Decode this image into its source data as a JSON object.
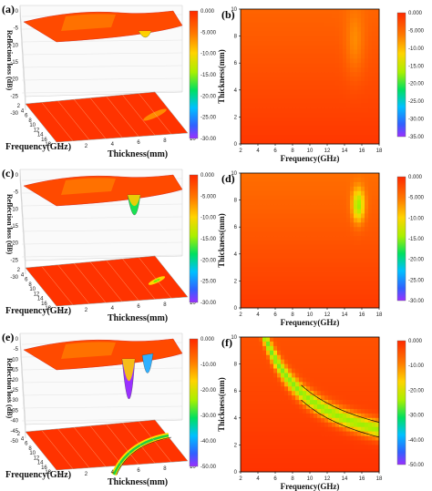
{
  "chart_data": [
    {
      "panel": "(a)",
      "type": "surface3d",
      "xlabel": "Frequency(GHz)",
      "ylabel": "Thickness(mm)",
      "zlabel": "Reflection loss (dB)",
      "x_ticks": [
        "2",
        "4",
        "6",
        "8",
        "10",
        "12",
        "14",
        "16",
        "18"
      ],
      "y_ticks": [
        "0",
        "2",
        "4",
        "6",
        "8",
        "10"
      ],
      "z_ticks": [
        "0",
        "-5",
        "-10",
        "-15",
        "-20",
        "-25",
        "-30"
      ],
      "colorbar_ticks": [
        "0.000",
        "-5.000",
        "-10.00",
        "-15.00",
        "-20.00",
        "-25.00",
        "-30.00"
      ],
      "min_rl": -10
    },
    {
      "panel": "(b)",
      "type": "heatmap",
      "xlabel": "Frequency(GHz)",
      "ylabel": "Thickness(mm)",
      "x_ticks": [
        "2",
        "4",
        "6",
        "8",
        "10",
        "12",
        "14",
        "16",
        "18"
      ],
      "y_ticks": [
        "0",
        "2",
        "4",
        "6",
        "8",
        "10"
      ],
      "colorbar_ticks": [
        "0.000",
        "-5.000",
        "-10.00",
        "-15.00",
        "-20.00",
        "-25.00",
        "-30.00",
        "-35.00"
      ],
      "min_rl": -10
    },
    {
      "panel": "(c)",
      "type": "surface3d",
      "xlabel": "Frequency(GHz)",
      "ylabel": "Thickness(mm)",
      "zlabel": "Reflection loss (dB)",
      "x_ticks": [
        "2",
        "4",
        "6",
        "8",
        "10",
        "12",
        "14",
        "16",
        "18"
      ],
      "y_ticks": [
        "0",
        "2",
        "4",
        "6",
        "8",
        "10"
      ],
      "z_ticks": [
        "0",
        "-5",
        "-10",
        "-15",
        "-20",
        "-25",
        "-30"
      ],
      "colorbar_ticks": [
        "0.000",
        "-5.000",
        "-10.00",
        "-15.00",
        "-20.00",
        "-25.00",
        "-30.00"
      ],
      "min_rl": -18
    },
    {
      "panel": "(d)",
      "type": "heatmap",
      "xlabel": "Frequency(GHz)",
      "ylabel": "Thickness(mm)",
      "x_ticks": [
        "2",
        "4",
        "6",
        "8",
        "10",
        "12",
        "14",
        "16",
        "18"
      ],
      "y_ticks": [
        "0",
        "2",
        "4",
        "6",
        "8",
        "10"
      ],
      "colorbar_ticks": [
        "0.000",
        "-5.000",
        "-10.00",
        "-15.00",
        "-20.00",
        "-25.00",
        "-30.00"
      ],
      "min_rl": -18
    },
    {
      "panel": "(e)",
      "type": "surface3d",
      "xlabel": "Frequency(GHz)",
      "ylabel": "Thickness(mm)",
      "zlabel": "Reflection loss (dB)",
      "x_ticks": [
        "2",
        "4",
        "6",
        "8",
        "10",
        "12",
        "14",
        "16",
        "18"
      ],
      "y_ticks": [
        "0",
        "2",
        "4",
        "6",
        "8",
        "10"
      ],
      "z_ticks": [
        "0",
        "-5",
        "-10",
        "-15",
        "-20",
        "-25",
        "-30",
        "-35",
        "-40",
        "-45",
        "-50"
      ],
      "colorbar_ticks": [
        "0.000",
        "-10.00",
        "-20.00",
        "-30.00",
        "-40.00",
        "-50.00"
      ],
      "min_rl": -50
    },
    {
      "panel": "(f)",
      "type": "heatmap",
      "xlabel": "Frequency(GHz)",
      "ylabel": "Thickness(mm)",
      "x_ticks": [
        "2",
        "4",
        "6",
        "8",
        "10",
        "12",
        "14",
        "16",
        "18"
      ],
      "y_ticks": [
        "0",
        "2",
        "4",
        "6",
        "8",
        "10"
      ],
      "colorbar_ticks": [
        "0.000",
        "-10.00",
        "-20.00",
        "-30.00",
        "-40.00",
        "-50.00"
      ],
      "min_rl": -50
    }
  ]
}
